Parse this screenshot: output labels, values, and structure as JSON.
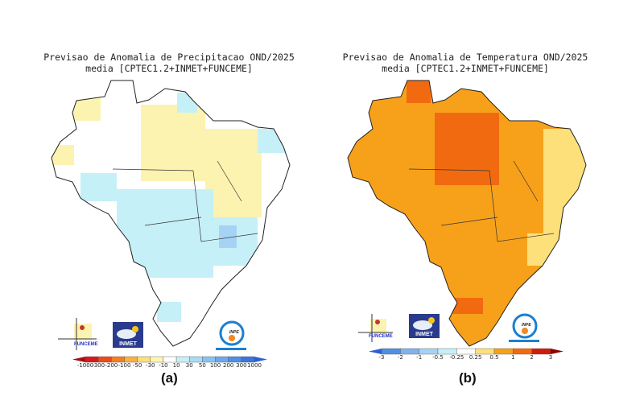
{
  "panels": [
    {
      "title_line1": "Previsao de Anomalia de Precipitacao OND/2025",
      "title_line2": "media [CPTEC1.2+INMET+FUNCEME]",
      "label": "(a)",
      "colorbar": {
        "labels": [
          "-1000",
          "-300",
          "-200",
          "-100",
          "-50",
          "-30",
          "-10",
          "10",
          "30",
          "50",
          "100",
          "200",
          "300",
          "1000"
        ],
        "colors": [
          "#a50f0f",
          "#d7191c",
          "#ee4a1c",
          "#f57f20",
          "#fbb040",
          "#fde07a",
          "#fff5b0",
          "#ffffff",
          "#c6f0f7",
          "#a6dcf5",
          "#86c3f0",
          "#6aa9ec",
          "#4f8fe6",
          "#3a76dd",
          "#2a60d0"
        ]
      }
    },
    {
      "title_line1": "Previsao de Anomalia de Temperatura OND/2025",
      "title_line2": "media [CPTEC1.2+INMET+FUNCEME]",
      "label": "(b)",
      "colorbar": {
        "labels": [
          "-3",
          "-2",
          "-1",
          "-0.5",
          "-0.25",
          "0.25",
          "0.5",
          "1",
          "2",
          "3"
        ],
        "colors": [
          "#2a60d0",
          "#4f8fe6",
          "#7fb3ee",
          "#a6d3f5",
          "#c6f0f7",
          "#ffffff",
          "#fde07a",
          "#f7a11a",
          "#f26a10",
          "#d01c0c",
          "#8b0000"
        ]
      }
    }
  ],
  "logos": {
    "funceme": "FUNCEME",
    "inmet": "INMET",
    "inpe": "INPE"
  },
  "map_colors": {
    "precip_dry_light": "#fdf3b0",
    "precip_wet_light": "#c6f0f7",
    "precip_wet_mid": "#a6d3f5",
    "temp_main": "#f7a11a",
    "temp_high": "#f26a10",
    "temp_low": "#fde07a"
  }
}
